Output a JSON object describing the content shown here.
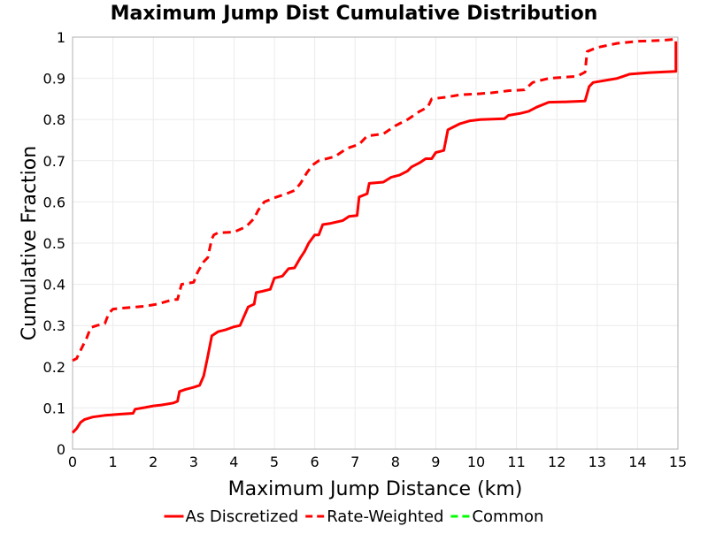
{
  "chart_data": {
    "type": "line",
    "title": "Maximum Jump Dist Cumulative Distribution",
    "xlabel": "Maximum Jump Distance (km)",
    "ylabel": "Cumulative Fraction",
    "xlim": [
      0,
      15
    ],
    "ylim": [
      0,
      1
    ],
    "x_ticks": [
      "0",
      "1",
      "2",
      "3",
      "4",
      "5",
      "6",
      "7",
      "8",
      "9",
      "10",
      "11",
      "12",
      "13",
      "14",
      "15"
    ],
    "y_ticks": [
      "0",
      "0.1",
      "0.2",
      "0.3",
      "0.4",
      "0.5",
      "0.6",
      "0.7",
      "0.8",
      "0.9",
      "1"
    ],
    "grid": true,
    "legend_position": "bottom",
    "series": [
      {
        "name": "As Discretized",
        "color": "#ff0000",
        "dash": "solid",
        "points": [
          [
            0.0,
            0.04
          ],
          [
            0.1,
            0.05
          ],
          [
            0.2,
            0.065
          ],
          [
            0.3,
            0.072
          ],
          [
            0.5,
            0.078
          ],
          [
            0.8,
            0.082
          ],
          [
            1.2,
            0.085
          ],
          [
            1.5,
            0.087
          ],
          [
            1.55,
            0.097
          ],
          [
            1.8,
            0.101
          ],
          [
            2.0,
            0.105
          ],
          [
            2.2,
            0.107
          ],
          [
            2.5,
            0.112
          ],
          [
            2.6,
            0.116
          ],
          [
            2.65,
            0.14
          ],
          [
            2.8,
            0.145
          ],
          [
            3.0,
            0.15
          ],
          [
            3.15,
            0.155
          ],
          [
            3.25,
            0.178
          ],
          [
            3.35,
            0.225
          ],
          [
            3.45,
            0.275
          ],
          [
            3.6,
            0.285
          ],
          [
            3.8,
            0.29
          ],
          [
            4.0,
            0.297
          ],
          [
            4.15,
            0.3
          ],
          [
            4.35,
            0.345
          ],
          [
            4.5,
            0.352
          ],
          [
            4.55,
            0.38
          ],
          [
            4.7,
            0.383
          ],
          [
            4.9,
            0.388
          ],
          [
            5.0,
            0.415
          ],
          [
            5.2,
            0.42
          ],
          [
            5.35,
            0.438
          ],
          [
            5.5,
            0.44
          ],
          [
            5.65,
            0.465
          ],
          [
            5.75,
            0.48
          ],
          [
            5.85,
            0.5
          ],
          [
            6.0,
            0.52
          ],
          [
            6.1,
            0.52
          ],
          [
            6.2,
            0.545
          ],
          [
            6.4,
            0.548
          ],
          [
            6.7,
            0.555
          ],
          [
            6.85,
            0.565
          ],
          [
            7.05,
            0.567
          ],
          [
            7.1,
            0.612
          ],
          [
            7.3,
            0.62
          ],
          [
            7.35,
            0.645
          ],
          [
            7.7,
            0.648
          ],
          [
            7.9,
            0.66
          ],
          [
            8.1,
            0.665
          ],
          [
            8.3,
            0.675
          ],
          [
            8.4,
            0.685
          ],
          [
            8.6,
            0.695
          ],
          [
            8.75,
            0.705
          ],
          [
            8.9,
            0.705
          ],
          [
            9.0,
            0.72
          ],
          [
            9.2,
            0.725
          ],
          [
            9.3,
            0.775
          ],
          [
            9.4,
            0.78
          ],
          [
            9.6,
            0.79
          ],
          [
            9.85,
            0.797
          ],
          [
            10.1,
            0.8
          ],
          [
            10.7,
            0.802
          ],
          [
            10.8,
            0.81
          ],
          [
            11.1,
            0.815
          ],
          [
            11.3,
            0.82
          ],
          [
            11.5,
            0.83
          ],
          [
            11.8,
            0.842
          ],
          [
            12.2,
            0.843
          ],
          [
            12.7,
            0.845
          ],
          [
            12.8,
            0.88
          ],
          [
            12.9,
            0.89
          ],
          [
            13.5,
            0.9
          ],
          [
            13.8,
            0.91
          ],
          [
            14.3,
            0.914
          ],
          [
            14.95,
            0.917
          ],
          [
            14.95,
            0.99
          ]
        ]
      },
      {
        "name": "Rate-Weighted",
        "color": "#ff0000",
        "dash": "dashed",
        "points": [
          [
            0.0,
            0.215
          ],
          [
            0.1,
            0.22
          ],
          [
            0.2,
            0.24
          ],
          [
            0.35,
            0.27
          ],
          [
            0.45,
            0.295
          ],
          [
            0.6,
            0.3
          ],
          [
            0.8,
            0.305
          ],
          [
            0.9,
            0.33
          ],
          [
            1.0,
            0.34
          ],
          [
            1.3,
            0.343
          ],
          [
            1.8,
            0.347
          ],
          [
            2.1,
            0.352
          ],
          [
            2.5,
            0.363
          ],
          [
            2.6,
            0.363
          ],
          [
            2.7,
            0.4
          ],
          [
            3.0,
            0.405
          ],
          [
            3.1,
            0.43
          ],
          [
            3.25,
            0.455
          ],
          [
            3.35,
            0.465
          ],
          [
            3.45,
            0.51
          ],
          [
            3.5,
            0.52
          ],
          [
            3.6,
            0.525
          ],
          [
            4.0,
            0.527
          ],
          [
            4.3,
            0.54
          ],
          [
            4.5,
            0.56
          ],
          [
            4.6,
            0.58
          ],
          [
            4.75,
            0.6
          ],
          [
            5.0,
            0.61
          ],
          [
            5.3,
            0.62
          ],
          [
            5.5,
            0.628
          ],
          [
            5.65,
            0.645
          ],
          [
            5.8,
            0.67
          ],
          [
            5.95,
            0.69
          ],
          [
            6.1,
            0.7
          ],
          [
            6.5,
            0.71
          ],
          [
            6.8,
            0.73
          ],
          [
            7.1,
            0.74
          ],
          [
            7.3,
            0.76
          ],
          [
            7.7,
            0.765
          ],
          [
            8.0,
            0.785
          ],
          [
            8.3,
            0.8
          ],
          [
            8.6,
            0.82
          ],
          [
            8.8,
            0.83
          ],
          [
            8.9,
            0.85
          ],
          [
            9.3,
            0.855
          ],
          [
            9.6,
            0.86
          ],
          [
            10.0,
            0.862
          ],
          [
            10.4,
            0.865
          ],
          [
            10.8,
            0.87
          ],
          [
            11.2,
            0.872
          ],
          [
            11.4,
            0.89
          ],
          [
            11.8,
            0.9
          ],
          [
            12.5,
            0.905
          ],
          [
            12.7,
            0.915
          ],
          [
            12.75,
            0.965
          ],
          [
            13.0,
            0.975
          ],
          [
            13.5,
            0.985
          ],
          [
            14.0,
            0.99
          ],
          [
            14.6,
            0.992
          ],
          [
            14.95,
            0.995
          ]
        ]
      },
      {
        "name": "Common",
        "color": "#00ff00",
        "dash": "dashed",
        "points": []
      }
    ]
  }
}
